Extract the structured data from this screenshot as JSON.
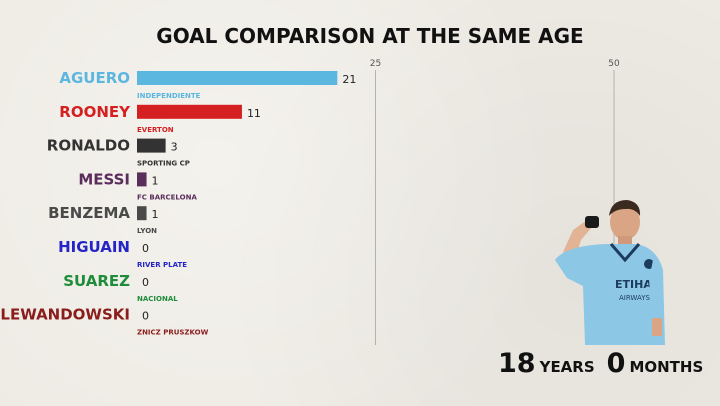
{
  "chart_data": {
    "type": "bar",
    "title": "GOAL COMPARISON AT THE SAME AGE",
    "orientation": "horizontal",
    "xlim": [
      0,
      50
    ],
    "ticks": [
      25,
      50
    ],
    "categories": [
      "AGUERO",
      "ROONEY",
      "RONALDO",
      "MESSI",
      "BENZEMA",
      "HIGUAIN",
      "SUAREZ",
      "LEWANDOWSKI"
    ],
    "values": [
      21,
      11,
      3,
      1,
      1,
      0,
      0,
      0
    ],
    "clubs": [
      "INDEPENDIENTE",
      "EVERTON",
      "SPORTING CP",
      "FC BARCELONA",
      "LYON",
      "RIVER PLATE",
      "NACIONAL",
      "ZNICZ PRUSZKOW"
    ],
    "colors": [
      "#5bb6e0",
      "#d42020",
      "#333333",
      "#5a2d5c",
      "#4a4a4a",
      "#2424c8",
      "#1e8c3a",
      "#8b1c1c"
    ]
  },
  "age": {
    "years": "18",
    "years_label": "YEARS",
    "months": "0",
    "months_label": "MONTHS"
  },
  "image": {
    "icon": "footballer-celebrating-icon"
  }
}
